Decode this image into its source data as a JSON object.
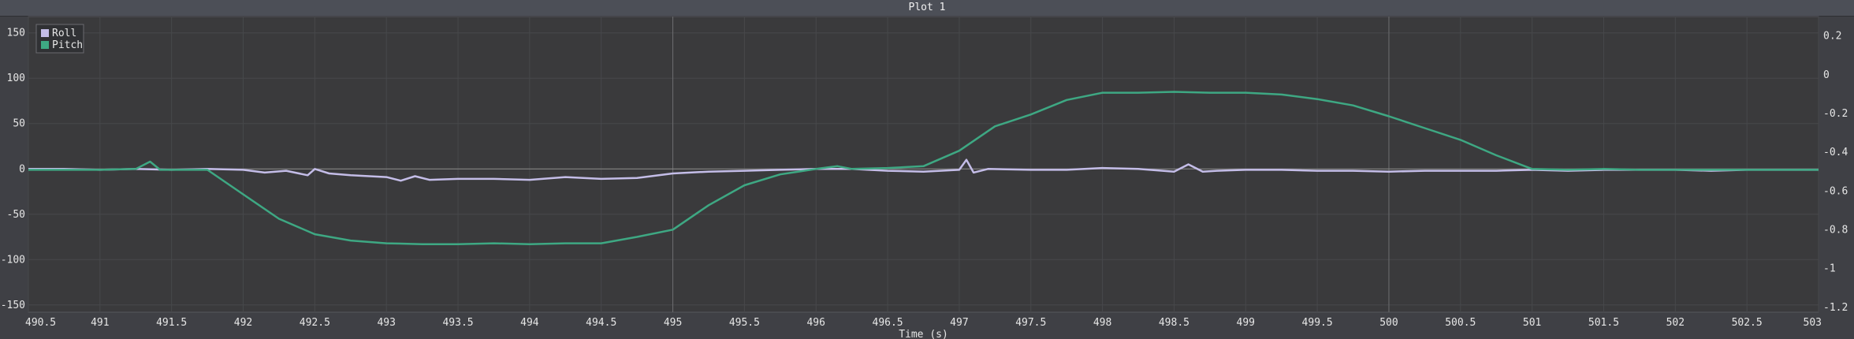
{
  "chart_data": {
    "type": "line",
    "title": "Plot 1",
    "xlabel": "Time (s)",
    "ylabel": "",
    "xlim": [
      490.5,
      503
    ],
    "ylim": [
      -158,
      168
    ],
    "y2lim": [
      -1.225,
      0.3
    ],
    "xticks": [
      "490.5",
      "491",
      "491.5",
      "492",
      "492.5",
      "493",
      "493.5",
      "494",
      "494.5",
      "495",
      "495.5",
      "496",
      "496.5",
      "497",
      "497.5",
      "498",
      "498.5",
      "499",
      "499.5",
      "500",
      "500.5",
      "501",
      "501.5",
      "502",
      "502.5",
      "503"
    ],
    "yticks": [
      "150",
      "100",
      "50",
      "0",
      "-50",
      "-100",
      "-150"
    ],
    "y2ticks": [
      "0.2",
      "0",
      "-0.2",
      "-0.4",
      "-0.6",
      "-0.8",
      "-1",
      "-1.2"
    ],
    "grid": true,
    "grid_x_major": [
      495,
      500
    ],
    "legend_position": "top-left",
    "series": [
      {
        "name": "Roll",
        "color": "#c4bde8",
        "x": [
          490.5,
          490.75,
          491,
          491.25,
          491.5,
          491.75,
          492,
          492.15,
          492.3,
          492.45,
          492.5,
          492.6,
          492.75,
          493,
          493.1,
          493.2,
          493.3,
          493.5,
          493.75,
          494,
          494.25,
          494.5,
          494.75,
          495,
          495.25,
          495.5,
          495.75,
          496,
          496.25,
          496.5,
          496.75,
          497,
          497.05,
          497.1,
          497.2,
          497.5,
          497.75,
          498,
          498.25,
          498.5,
          498.6,
          498.7,
          498.8,
          499,
          499.25,
          499.5,
          499.75,
          500,
          500.25,
          500.5,
          500.75,
          501,
          501.25,
          501.5,
          501.75,
          502,
          502.25,
          502.5,
          502.75,
          503
        ],
        "values": [
          0,
          0,
          -1,
          0,
          -1,
          0,
          -1,
          -4,
          -2,
          -7,
          0,
          -5,
          -7,
          -9,
          -13,
          -8,
          -12,
          -11,
          -11,
          -12,
          -9,
          -11,
          -10,
          -5,
          -3,
          -2,
          -1,
          0,
          0,
          -2,
          -3,
          -1,
          10,
          -4,
          0,
          -1,
          -1,
          1,
          0,
          -3,
          5,
          -3,
          -2,
          -1,
          -1,
          -2,
          -2,
          -3,
          -2,
          -2,
          -2,
          -1,
          -2,
          -1,
          -1,
          -1,
          -2,
          -1,
          -1,
          -1
        ]
      },
      {
        "name": "Pitch",
        "color": "#3ea883",
        "x": [
          490.5,
          490.75,
          491,
          491.25,
          491.35,
          491.42,
          491.5,
          491.75,
          492,
          492.25,
          492.5,
          492.75,
          493,
          493.25,
          493.5,
          493.75,
          494,
          494.25,
          494.5,
          494.75,
          495,
          495.25,
          495.5,
          495.75,
          496,
          496.15,
          496.25,
          496.5,
          496.75,
          497,
          497.25,
          497.5,
          497.75,
          498,
          498.25,
          498.5,
          498.75,
          499,
          499.25,
          499.5,
          499.75,
          500,
          500.25,
          500.5,
          500.75,
          501,
          501.25,
          501.5,
          501.75,
          502,
          502.25,
          502.5,
          502.75,
          503
        ],
        "values": [
          -1,
          -1,
          -1,
          0,
          8,
          -1,
          -1,
          -1,
          -28,
          -55,
          -72,
          -79,
          -82,
          -83,
          -83,
          -82,
          -83,
          -82,
          -82,
          -75,
          -67,
          -40,
          -18,
          -6,
          0,
          3,
          0,
          1,
          3,
          20,
          47,
          60,
          76,
          84,
          84,
          85,
          84,
          84,
          82,
          77,
          70,
          58,
          45,
          32,
          15,
          0,
          -1,
          0,
          -1,
          -1,
          -1,
          -1,
          -1,
          -1
        ]
      }
    ]
  }
}
